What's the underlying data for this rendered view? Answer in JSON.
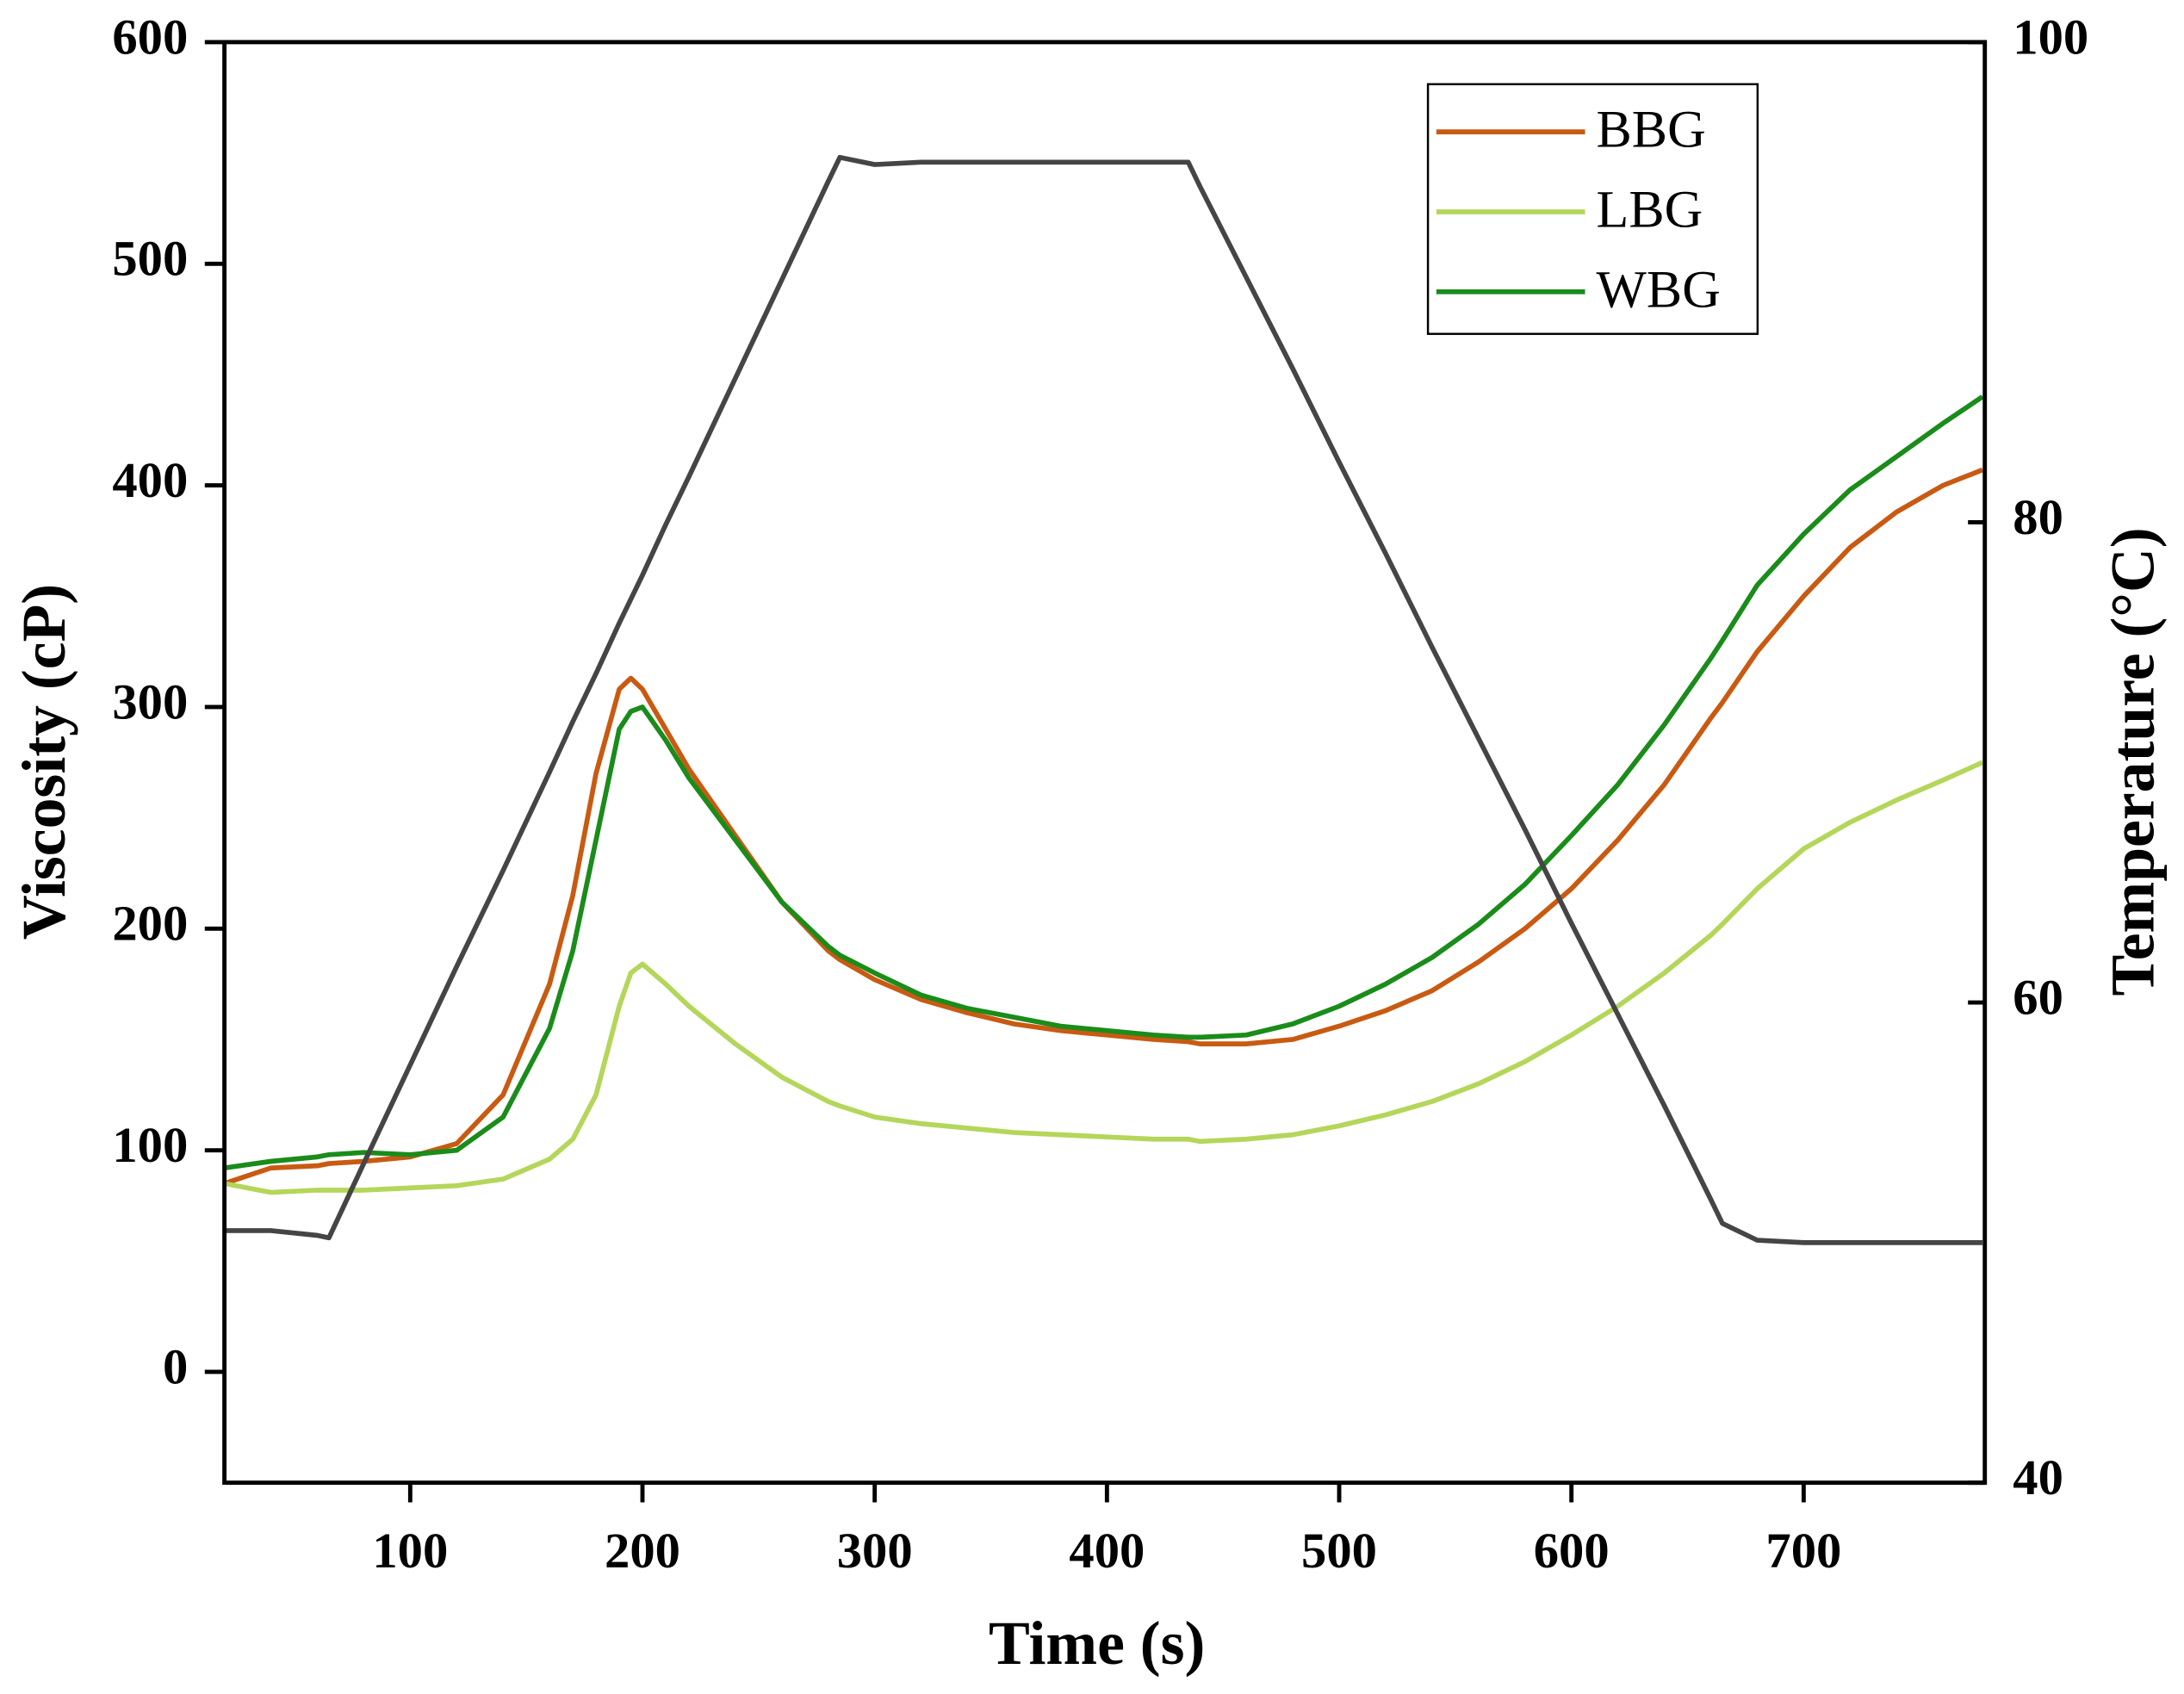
{
  "chart_data": {
    "type": "line",
    "x_label": "Time (s)",
    "y_label": "Viscosity (cP)",
    "y2_label": "Temperature (°C)",
    "x": [
      20,
      40,
      60,
      65,
      80,
      100,
      120,
      140,
      160,
      170,
      180,
      190,
      195,
      200,
      210,
      220,
      240,
      260,
      280,
      285,
      300,
      320,
      340,
      360,
      380,
      400,
      420,
      435,
      440,
      460,
      480,
      500,
      520,
      540,
      560,
      580,
      600,
      620,
      640,
      660,
      665,
      680,
      700,
      720,
      740,
      760,
      777
    ],
    "series": [
      {
        "name": "BBG",
        "color": "#c95a12",
        "values": [
          85,
          92,
          93,
          94,
          95,
          97,
          103,
          125,
          175,
          215,
          270,
          308,
          313,
          308,
          290,
          272,
          242,
          212,
          190,
          186,
          177,
          168,
          162,
          157,
          154,
          152,
          150,
          149,
          148,
          148,
          150,
          156,
          163,
          172,
          185,
          200,
          218,
          240,
          265,
          295,
          302,
          325,
          350,
          372,
          388,
          400,
          407
        ]
      },
      {
        "name": "LBG",
        "color": "#b4d65a",
        "values": [
          85,
          81,
          82,
          82,
          82,
          83,
          84,
          87,
          96,
          105,
          125,
          165,
          180,
          184,
          175,
          165,
          148,
          133,
          122,
          120,
          115,
          112,
          110,
          108,
          107,
          106,
          105,
          105,
          104,
          105,
          107,
          111,
          116,
          122,
          130,
          140,
          152,
          165,
          180,
          197,
          202,
          218,
          236,
          248,
          258,
          267,
          275
        ]
      },
      {
        "name": "WBG",
        "color": "#1a8c1a",
        "values": [
          92,
          95,
          97,
          98,
          99,
          98,
          100,
          115,
          155,
          190,
          240,
          290,
          298,
          300,
          285,
          268,
          240,
          212,
          192,
          188,
          180,
          170,
          164,
          160,
          156,
          154,
          152,
          151,
          151,
          152,
          157,
          165,
          175,
          187,
          202,
          220,
          242,
          265,
          292,
          322,
          330,
          355,
          378,
          398,
          413,
          428,
          440
        ]
      },
      {
        "color": "#454545",
        "axis": "y2",
        "values": [
          50.5,
          50.5,
          50.3,
          50.2,
          53.3,
          57.4,
          61.5,
          65.5,
          69.6,
          71.7,
          73.7,
          75.8,
          76.8,
          77.8,
          79.9,
          81.9,
          86.0,
          90.1,
          94.2,
          95.2,
          94.9,
          95.0,
          95.0,
          95.0,
          95.0,
          95.0,
          95.0,
          95.0,
          94.0,
          90.2,
          86.4,
          82.5,
          78.7,
          74.8,
          71.0,
          67.2,
          63.3,
          59.5,
          55.7,
          51.8,
          50.8,
          50.1,
          50.0,
          50.0,
          50.0,
          50.0,
          50.0
        ]
      }
    ],
    "xlim": [
      20,
      778
    ],
    "xticks": [
      100,
      200,
      300,
      400,
      500,
      600,
      700
    ],
    "ylim": [
      -50,
      600
    ],
    "yticks": [
      0,
      100,
      200,
      300,
      400,
      500,
      600
    ],
    "y2lim": [
      40,
      100
    ],
    "y2ticks": [
      40,
      60,
      80,
      100
    ],
    "legend": "upper right"
  }
}
